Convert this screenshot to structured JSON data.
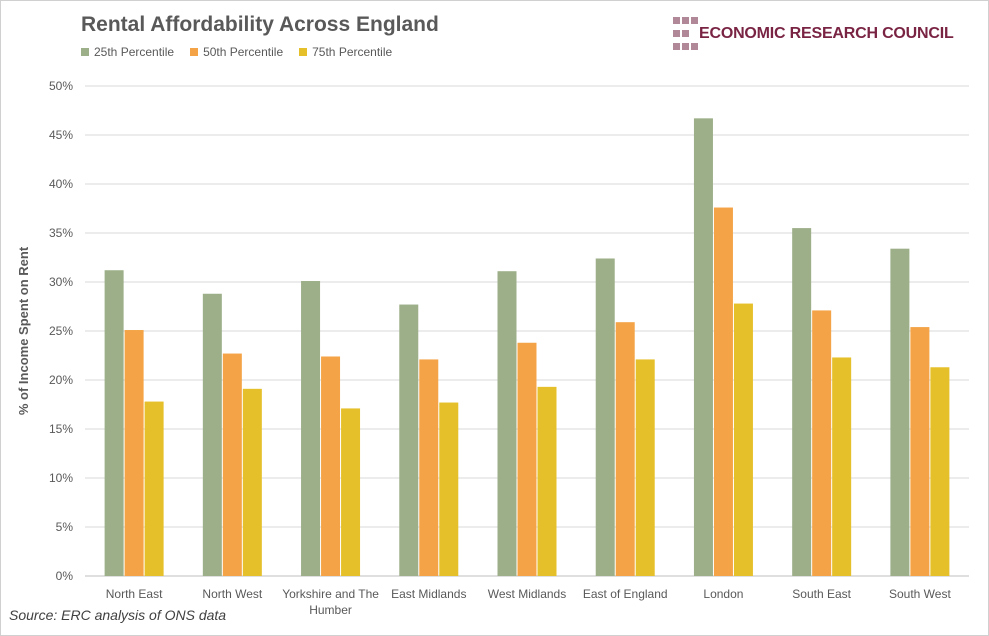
{
  "chart_data": {
    "type": "bar",
    "title": "Rental Affordability Across England",
    "ylabel": "% of Income Spent on Rent",
    "xlabel": "",
    "ylim": [
      0,
      50
    ],
    "yticks": [
      "0%",
      "5%",
      "10%",
      "15%",
      "20%",
      "25%",
      "30%",
      "35%",
      "40%",
      "45%",
      "50%"
    ],
    "grid": true,
    "legend_position": "top-left",
    "categories": [
      "North East",
      "North West",
      "Yorkshire and The Humber",
      "East Midlands",
      "West Midlands",
      "East of England",
      "London",
      "South East",
      "South West"
    ],
    "series": [
      {
        "name": "25th Percentile",
        "color": "#9caf88",
        "values": [
          31.2,
          28.8,
          30.1,
          27.7,
          31.1,
          32.4,
          46.7,
          35.5,
          33.4
        ]
      },
      {
        "name": "50th Percentile",
        "color": "#f4a447",
        "values": [
          25.1,
          22.7,
          22.4,
          22.1,
          23.8,
          25.9,
          37.6,
          27.1,
          25.4
        ]
      },
      {
        "name": "75th Percentile",
        "color": "#e6c02a",
        "values": [
          17.8,
          19.1,
          17.1,
          17.7,
          19.3,
          22.1,
          27.8,
          22.3,
          21.3
        ]
      }
    ]
  },
  "logo": {
    "text": "ECONOMIC RESEARCH COUNCIL"
  },
  "source": "Source: ERC analysis of ONS data"
}
